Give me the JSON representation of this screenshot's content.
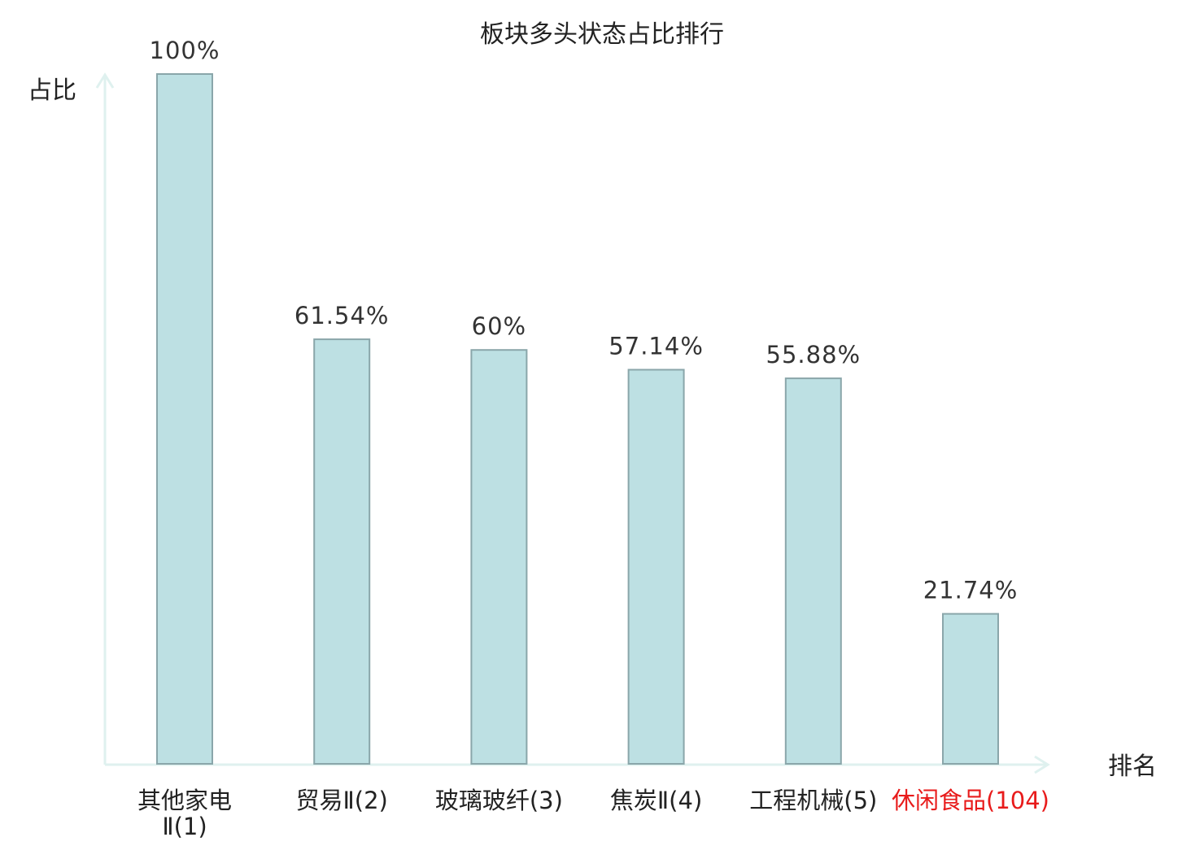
{
  "chart_data": {
    "type": "bar",
    "title": "板块多头状态占比排行",
    "xlabel": "排名",
    "ylabel": "占比",
    "ylim": [
      0,
      100
    ],
    "grid": false,
    "categories": [
      "其他家电Ⅱ(1)",
      "贸易Ⅱ(2)",
      "玻璃玻纤(3)",
      "焦炭Ⅱ(4)",
      "工程机械(5)",
      "休闲食品(104)"
    ],
    "category_lines": [
      [
        "其他家电",
        "Ⅱ(1)"
      ],
      [
        "贸易Ⅱ(2)"
      ],
      [
        "玻璃玻纤(3)"
      ],
      [
        "焦炭Ⅱ(4)"
      ],
      [
        "工程机械(5)"
      ],
      [
        "休闲食品(104)"
      ]
    ],
    "values": [
      100,
      61.54,
      60,
      57.14,
      55.88,
      21.74
    ],
    "value_labels": [
      "100%",
      "61.54%",
      "60%",
      "57.14%",
      "55.88%",
      "21.74%"
    ],
    "highlight_index": 5
  },
  "colors": {
    "bar_fill": "#bde0e3",
    "bar_stroke": "#8aa6aa",
    "axis": "#dff1ef",
    "text": "#222222",
    "value_text": "#333333",
    "highlight": "#e81b1b"
  }
}
